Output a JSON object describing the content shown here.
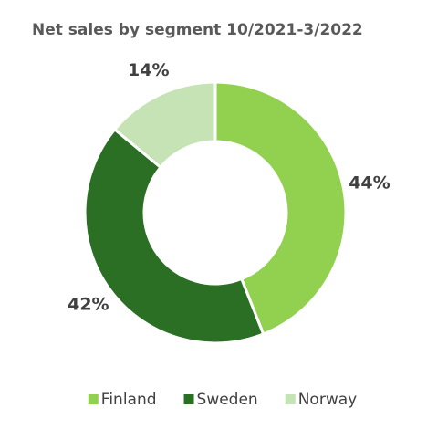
{
  "chart_data": {
    "type": "donut",
    "title": "Net sales by segment 10/2021-3/2022",
    "categories": [
      "Finland",
      "Sweden",
      "Norway"
    ],
    "values": [
      44,
      42,
      14
    ],
    "value_labels": [
      "44%",
      "42%",
      "14%"
    ],
    "colors": [
      "#92d050",
      "#2b6f24",
      "#c5e3b4"
    ],
    "legend": "bottom"
  }
}
